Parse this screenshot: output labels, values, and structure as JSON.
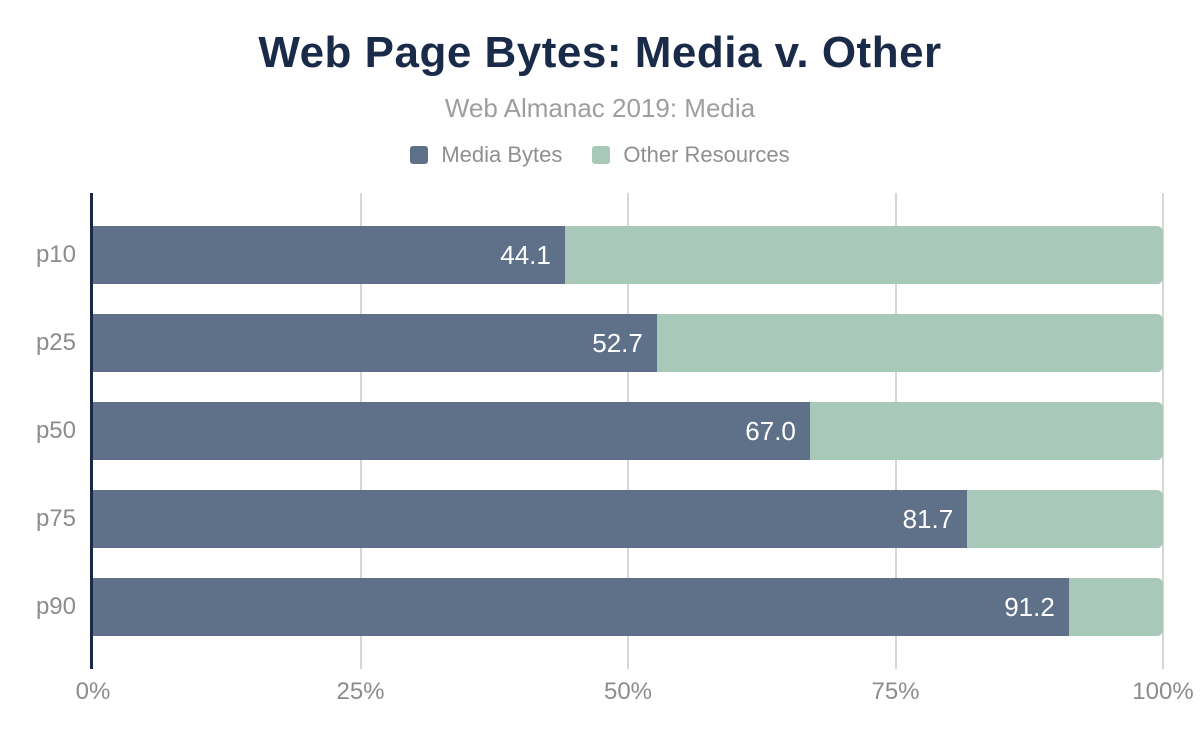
{
  "header": {
    "title": "Web Page Bytes: Media v. Other",
    "subtitle": "Web Almanac 2019: Media",
    "title_color": "#1a2b49",
    "subtitle_color": "#9e9e9e"
  },
  "legend": {
    "items": [
      {
        "label": "Media Bytes",
        "color": "#5f7189"
      },
      {
        "label": "Other Resources",
        "color": "#a8c9b9"
      }
    ],
    "text_color": "#8f8f8f"
  },
  "chart_data": {
    "type": "bar",
    "orientation": "horizontal",
    "stacked": true,
    "title": "Web Page Bytes: Media v. Other",
    "subtitle": "Web Almanac 2019: Media",
    "categories": [
      "p10",
      "p25",
      "p50",
      "p75",
      "p90"
    ],
    "series": [
      {
        "name": "Media Bytes",
        "color": "#5f7189",
        "values": [
          44.1,
          52.7,
          67.0,
          81.7,
          91.2
        ]
      },
      {
        "name": "Other Resources",
        "color": "#a8c9b9",
        "values": [
          55.9,
          47.3,
          33.0,
          18.3,
          8.8
        ]
      }
    ],
    "value_labels": [
      "44.1",
      "52.7",
      "67.0",
      "81.7",
      "91.2"
    ],
    "x_ticks": [
      "0%",
      "25%",
      "50%",
      "75%",
      "100%"
    ],
    "x_tick_positions": [
      0,
      25,
      50,
      75,
      100
    ],
    "xlim": [
      0,
      100
    ],
    "grid": true,
    "legend_position": "top",
    "axis_color": "#1a2b49",
    "grid_color": "#d6d6d6",
    "tick_text_color": "#8c8c8c",
    "bar_value_text_color": "#ffffff"
  }
}
